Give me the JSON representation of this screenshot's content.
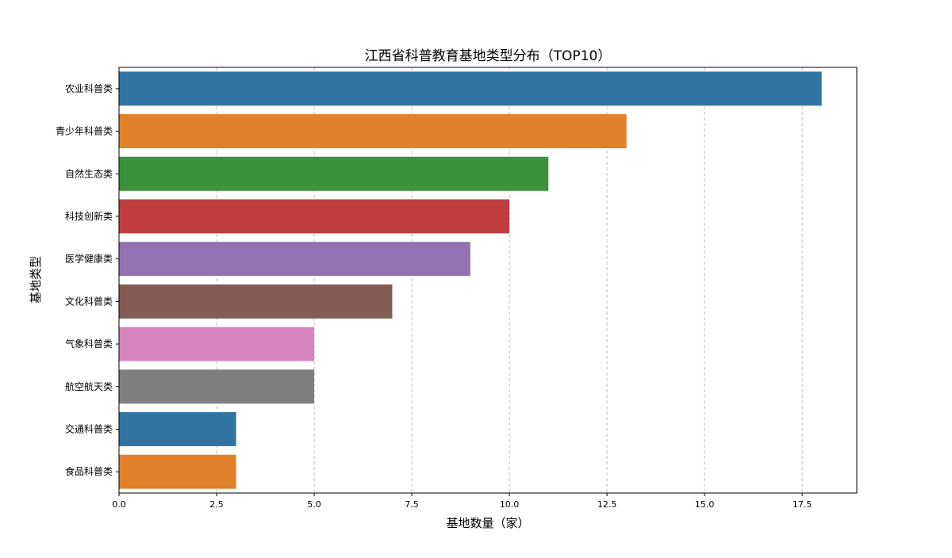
{
  "chart_data": {
    "type": "bar",
    "orientation": "horizontal",
    "title": "江西省科普教育基地类型分布（TOP10）",
    "xlabel": "基地数量（家）",
    "ylabel": "基地类型",
    "categories": [
      "农业科普类",
      "青少年科普类",
      "自然生态类",
      "科技创新类",
      "医学健康类",
      "文化科普类",
      "气象科普类",
      "航空航天类",
      "交通科普类",
      "食品科普类"
    ],
    "values": [
      18,
      13,
      11,
      10,
      9,
      7,
      5,
      5,
      3,
      3
    ],
    "colors": [
      "#3274a1",
      "#e1812c",
      "#3a923a",
      "#c03d3e",
      "#9372b2",
      "#845b53",
      "#d684bd",
      "#7f7f7f",
      "#3274a1",
      "#e1812c"
    ],
    "xlim": [
      0,
      18.9
    ],
    "xticks": [
      0,
      2.5,
      5,
      7.5,
      10,
      12.5,
      15,
      17.5
    ],
    "xtick_labels": [
      "0.0",
      "2.5",
      "5.0",
      "7.5",
      "10.0",
      "12.5",
      "15.0",
      "17.5"
    ],
    "grid": "x, dashed"
  }
}
